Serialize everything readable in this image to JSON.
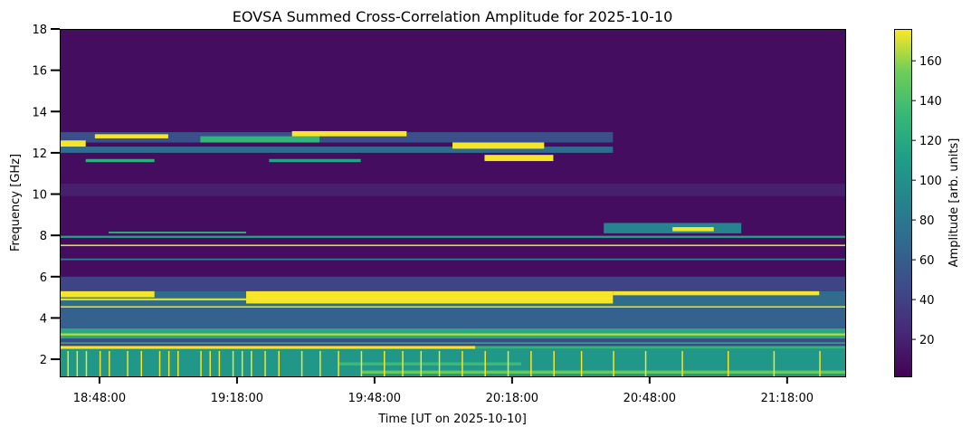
{
  "chart_data": {
    "type": "heatmap",
    "title": "EOVSA Summed Cross-Correlation Amplitude for 2025-10-10",
    "xlabel": "Time [UT on 2025-10-10]",
    "ylabel": "Frequency [GHz]",
    "colorbar_label": "Amplitude [arb. units]",
    "colormap": "viridis",
    "xlim": [
      "18:39:20",
      "21:30:40"
    ],
    "ylim": [
      1.17,
      18
    ],
    "clim": [
      1.4,
      176
    ],
    "x_ticks": [
      "18:48:00",
      "19:18:00",
      "19:48:00",
      "20:18:00",
      "20:48:00",
      "21:18:00"
    ],
    "y_ticks": [
      "2",
      "4",
      "6",
      "8",
      "10",
      "12",
      "14",
      "16",
      "18"
    ],
    "colorbar_ticks": [
      "20",
      "40",
      "60",
      "80",
      "100",
      "120",
      "140",
      "160"
    ],
    "background_amplitude": 8,
    "bands": [
      {
        "f": [
          1.17,
          2.5
        ],
        "t": [
          "18:39:20",
          "21:30:40"
        ],
        "amp": 105
      },
      {
        "f": [
          1.3,
          1.45
        ],
        "t": [
          "19:45",
          "21:30:40"
        ],
        "amp": 150
      },
      {
        "f": [
          1.7,
          1.85
        ],
        "t": [
          "19:40",
          "20:20"
        ],
        "amp": 135
      },
      {
        "f": [
          2.5,
          2.65
        ],
        "t": [
          "18:39:20",
          "20:10"
        ],
        "amp": 175
      },
      {
        "f": [
          2.5,
          2.65
        ],
        "t": [
          "20:10",
          "21:30:40"
        ],
        "amp": 130
      },
      {
        "f": [
          2.65,
          3.0
        ],
        "t": [
          "18:39:20",
          "21:30:40"
        ],
        "amp": 45
      },
      {
        "f": [
          2.75,
          2.82
        ],
        "t": [
          "18:39:20",
          "21:30:40"
        ],
        "amp": 120
      },
      {
        "f": [
          3.0,
          3.5
        ],
        "t": [
          "18:39:20",
          "21:30:40"
        ],
        "amp": 120
      },
      {
        "f": [
          3.15,
          3.25
        ],
        "t": [
          "18:39:20",
          "21:30:40"
        ],
        "amp": 165
      },
      {
        "f": [
          3.5,
          4.5
        ],
        "t": [
          "18:39:20",
          "21:30:40"
        ],
        "amp": 62
      },
      {
        "f": [
          4.5,
          4.58
        ],
        "t": [
          "18:39:20",
          "21:30:40"
        ],
        "amp": 170
      },
      {
        "f": [
          4.58,
          5.3
        ],
        "t": [
          "18:39:20",
          "21:30:40"
        ],
        "amp": 70
      },
      {
        "f": [
          4.85,
          4.95
        ],
        "t": [
          "18:39:20",
          "19:40"
        ],
        "amp": 170
      },
      {
        "f": [
          5.0,
          5.3
        ],
        "t": [
          "18:39:20",
          "19:00"
        ],
        "amp": 175
      },
      {
        "f": [
          4.7,
          5.3
        ],
        "t": [
          "19:20",
          "20:40"
        ],
        "amp": 175
      },
      {
        "f": [
          5.1,
          5.3
        ],
        "t": [
          "20:40",
          "21:25"
        ],
        "amp": 175
      },
      {
        "f": [
          5.3,
          6.0
        ],
        "t": [
          "18:39:20",
          "21:30:40"
        ],
        "amp": 42
      },
      {
        "f": [
          6.8,
          6.88
        ],
        "t": [
          "18:39:20",
          "21:30:40"
        ],
        "amp": 85
      },
      {
        "f": [
          7.48,
          7.55
        ],
        "t": [
          "18:39:20",
          "21:30:40"
        ],
        "amp": 170
      },
      {
        "f": [
          7.88,
          7.98
        ],
        "t": [
          "18:39:20",
          "21:30:40"
        ],
        "amp": 115
      },
      {
        "f": [
          8.1,
          8.6
        ],
        "t": [
          "20:38",
          "21:08"
        ],
        "amp": 90
      },
      {
        "f": [
          8.2,
          8.4
        ],
        "t": [
          "20:53",
          "21:02"
        ],
        "amp": 175
      },
      {
        "f": [
          8.1,
          8.18
        ],
        "t": [
          "18:50",
          "19:20"
        ],
        "amp": 130
      },
      {
        "f": [
          12.0,
          12.3
        ],
        "t": [
          "18:39:20",
          "20:40"
        ],
        "amp": 70
      },
      {
        "f": [
          12.5,
          13.0
        ],
        "t": [
          "18:39:20",
          "20:40"
        ],
        "amp": 50
      },
      {
        "f": [
          12.3,
          12.6
        ],
        "t": [
          "18:39:20",
          "18:45"
        ],
        "amp": 175
      },
      {
        "f": [
          12.7,
          12.9
        ],
        "t": [
          "18:47",
          "19:03"
        ],
        "amp": 175
      },
      {
        "f": [
          12.5,
          12.8
        ],
        "t": [
          "19:10",
          "19:36"
        ],
        "amp": 130
      },
      {
        "f": [
          12.8,
          13.05
        ],
        "t": [
          "19:30",
          "19:55"
        ],
        "amp": 175
      },
      {
        "f": [
          12.2,
          12.5
        ],
        "t": [
          "20:05",
          "20:25"
        ],
        "amp": 175
      },
      {
        "f": [
          11.6,
          11.9
        ],
        "t": [
          "20:12",
          "20:27"
        ],
        "amp": 175
      },
      {
        "f": [
          11.55,
          11.7
        ],
        "t": [
          "18:45",
          "19:00"
        ],
        "amp": 125
      },
      {
        "f": [
          11.55,
          11.7
        ],
        "t": [
          "19:25",
          "19:45"
        ],
        "amp": 115
      },
      {
        "f": [
          9.9,
          10.5
        ],
        "t": [
          "18:39:20",
          "21:30:40"
        ],
        "amp": 18
      }
    ],
    "spike_times": [
      "18:41",
      "18:43",
      "18:45",
      "18:48",
      "18:50",
      "18:54",
      "18:57",
      "19:01",
      "19:03",
      "19:05",
      "19:10",
      "19:12",
      "19:14",
      "19:17",
      "19:19",
      "19:21",
      "19:24",
      "19:27",
      "19:32",
      "19:36",
      "19:40",
      "19:45",
      "19:50",
      "19:54",
      "19:58",
      "20:02",
      "20:07",
      "20:12",
      "20:17",
      "20:22",
      "20:27",
      "20:33",
      "20:40",
      "20:47",
      "20:55",
      "21:05",
      "21:15",
      "21:25"
    ]
  }
}
